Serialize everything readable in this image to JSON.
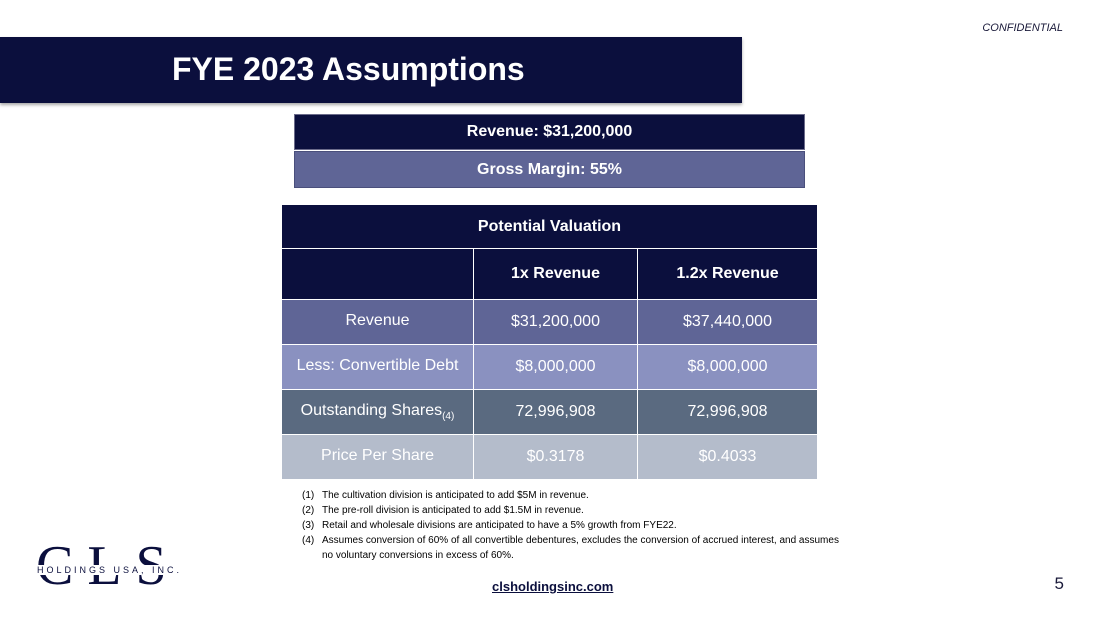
{
  "header": {
    "confidential": "CONFIDENTIAL",
    "title": "FYE 2023 Assumptions"
  },
  "summary": {
    "revenue": "Revenue: $31,200,000",
    "gross_margin": "Gross Margin: 55%"
  },
  "valuation": {
    "heading": "Potential Valuation",
    "columns": [
      "",
      "1x Revenue",
      "1.2x Revenue"
    ],
    "rows": [
      {
        "label": "Revenue",
        "label_sub": "",
        "v1": "$31,200,000",
        "v2": "$37,440,000"
      },
      {
        "label": "Less: Convertible Debt",
        "label_sub": "",
        "v1": "$8,000,000",
        "v2": "$8,000,000"
      },
      {
        "label": "Outstanding Shares",
        "label_sub": "(4)",
        "v1": "72,996,908",
        "v2": "72,996,908"
      },
      {
        "label": "Price Per Share",
        "label_sub": "",
        "v1": "$0.3178",
        "v2": "$0.4033"
      }
    ]
  },
  "footnotes": [
    {
      "num": "(1)",
      "text": "The cultivation division is anticipated to add $5M in revenue."
    },
    {
      "num": "(2)",
      "text": "The pre-roll division is anticipated to add $1.5M in revenue."
    },
    {
      "num": "(3)",
      "text": "Retail and wholesale divisions are anticipated to have a 5% growth from FYE22."
    },
    {
      "num": "(4)",
      "text": "Assumes conversion of 60% of all convertible debentures, excludes the conversion of accrued interest, and assumes no voluntary conversions in excess of 60%."
    }
  ],
  "logo": {
    "letters": "CLS",
    "tagline": "HOLDINGS USA, INC."
  },
  "footer": {
    "url": "clsholdingsinc.com",
    "page_number": "5"
  },
  "colors": {
    "navy": "#0b0f3d",
    "slate_blue": "#5f6596",
    "periwinkle": "#8a91c0",
    "steel": "#5a6a80",
    "light_gray_blue": "#b4bccb"
  }
}
